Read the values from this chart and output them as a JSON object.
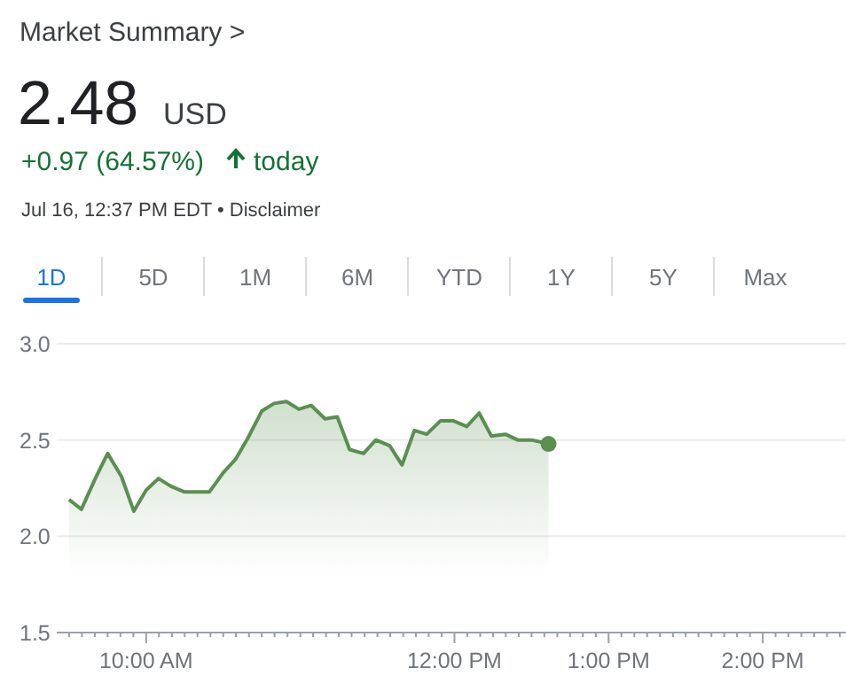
{
  "chart_data": {
    "type": "area",
    "title": "Market Summary >",
    "annotations": [
      "2.48",
      "USD",
      "+0.97 (64.57%)",
      "today",
      "Jul 16, 12:37 PM EDT • Disclaimer",
      "1D",
      "5D",
      "1M",
      "6M",
      "YTD",
      "1Y",
      "5Y",
      "Max"
    ],
    "series": [
      {
        "color": "#5a8f52",
        "x": [
          9.5,
          9.58,
          9.67,
          9.75,
          9.84,
          9.92,
          10.0,
          10.08,
          10.16,
          10.25,
          10.33,
          10.41,
          10.5,
          10.58,
          10.66,
          10.75,
          10.83,
          10.91,
          10.99,
          11.07,
          11.16,
          11.24,
          11.32,
          11.41,
          11.49,
          11.58,
          11.66,
          11.74,
          11.82,
          11.91,
          11.99,
          12.08,
          12.16,
          12.24,
          12.33,
          12.41,
          12.5,
          12.61
        ],
        "values": [
          2.19,
          2.14,
          2.3,
          2.43,
          2.31,
          2.13,
          2.24,
          2.3,
          2.26,
          2.23,
          2.23,
          2.23,
          2.33,
          2.4,
          2.51,
          2.65,
          2.69,
          2.7,
          2.66,
          2.68,
          2.61,
          2.62,
          2.45,
          2.43,
          2.5,
          2.47,
          2.37,
          2.55,
          2.53,
          2.6,
          2.6,
          2.57,
          2.64,
          2.52,
          2.53,
          2.5,
          2.5,
          2.48
        ]
      },
      {
        "type": "scatter",
        "marker": "circle",
        "color": "#5a8f52",
        "x": [
          12.61
        ],
        "values": [
          2.48
        ]
      }
    ],
    "ylim": [
      1.5,
      3.0
    ],
    "yticks": [
      {
        "value": 1.5,
        "label": "1.5"
      },
      {
        "value": 2,
        "label": "2.0"
      },
      {
        "value": 2.5,
        "label": "2.5"
      },
      {
        "value": 3,
        "label": "3.0"
      }
    ],
    "xlim": [
      9.42,
      14.54
    ],
    "xticks": [
      {
        "value": 9.5,
        "label": null
      },
      {
        "value": 9.583,
        "label": null
      },
      {
        "value": 9.667,
        "label": null
      },
      {
        "value": 9.75,
        "label": null
      },
      {
        "value": 9.833,
        "label": null
      },
      {
        "value": 9.917,
        "label": null
      },
      {
        "value": 10,
        "label": "10:00 AM"
      },
      {
        "value": 10.083,
        "label": null
      },
      {
        "value": 10.167,
        "label": null
      },
      {
        "value": 10.25,
        "label": null
      },
      {
        "value": 10.333,
        "label": null
      },
      {
        "value": 10.417,
        "label": null
      },
      {
        "value": 10.5,
        "label": null
      },
      {
        "value": 10.583,
        "label": null
      },
      {
        "value": 10.667,
        "label": null
      },
      {
        "value": 10.75,
        "label": null
      },
      {
        "value": 10.833,
        "label": null
      },
      {
        "value": 10.917,
        "label": null
      },
      {
        "value": 11,
        "label": null
      },
      {
        "value": 11.083,
        "label": null
      },
      {
        "value": 11.167,
        "label": null
      },
      {
        "value": 11.25,
        "label": null
      },
      {
        "value": 11.333,
        "label": null
      },
      {
        "value": 11.417,
        "label": null
      },
      {
        "value": 11.5,
        "label": null
      },
      {
        "value": 11.583,
        "label": null
      },
      {
        "value": 11.667,
        "label": null
      },
      {
        "value": 11.75,
        "label": null
      },
      {
        "value": 11.833,
        "label": null
      },
      {
        "value": 11.917,
        "label": null
      },
      {
        "value": 12,
        "label": "12:00 PM"
      },
      {
        "value": 12.083,
        "label": null
      },
      {
        "value": 12.167,
        "label": null
      },
      {
        "value": 12.25,
        "label": null
      },
      {
        "value": 12.333,
        "label": null
      },
      {
        "value": 12.417,
        "label": null
      },
      {
        "value": 12.5,
        "label": null
      },
      {
        "value": 12.583,
        "label": null
      },
      {
        "value": 12.667,
        "label": null
      },
      {
        "value": 12.75,
        "label": null
      },
      {
        "value": 12.833,
        "label": null
      },
      {
        "value": 12.917,
        "label": null
      },
      {
        "value": 13,
        "label": "1:00 PM"
      },
      {
        "value": 13.083,
        "label": null
      },
      {
        "value": 13.167,
        "label": null
      },
      {
        "value": 13.25,
        "label": null
      },
      {
        "value": 13.333,
        "label": null
      },
      {
        "value": 13.417,
        "label": null
      },
      {
        "value": 13.5,
        "label": null
      },
      {
        "value": 13.583,
        "label": null
      },
      {
        "value": 13.667,
        "label": null
      },
      {
        "value": 13.75,
        "label": null
      },
      {
        "value": 13.833,
        "label": null
      },
      {
        "value": 13.917,
        "label": null
      },
      {
        "value": 14,
        "label": "2:00 PM"
      },
      {
        "value": 14.083,
        "label": null
      },
      {
        "value": 14.167,
        "label": null
      },
      {
        "value": 14.25,
        "label": null
      },
      {
        "value": 14.333,
        "label": null
      },
      {
        "value": 14.417,
        "label": null
      },
      {
        "value": 14.5,
        "label": null
      }
    ],
    "grid": "y",
    "marker": "none",
    "line_style": "solid"
  }
}
